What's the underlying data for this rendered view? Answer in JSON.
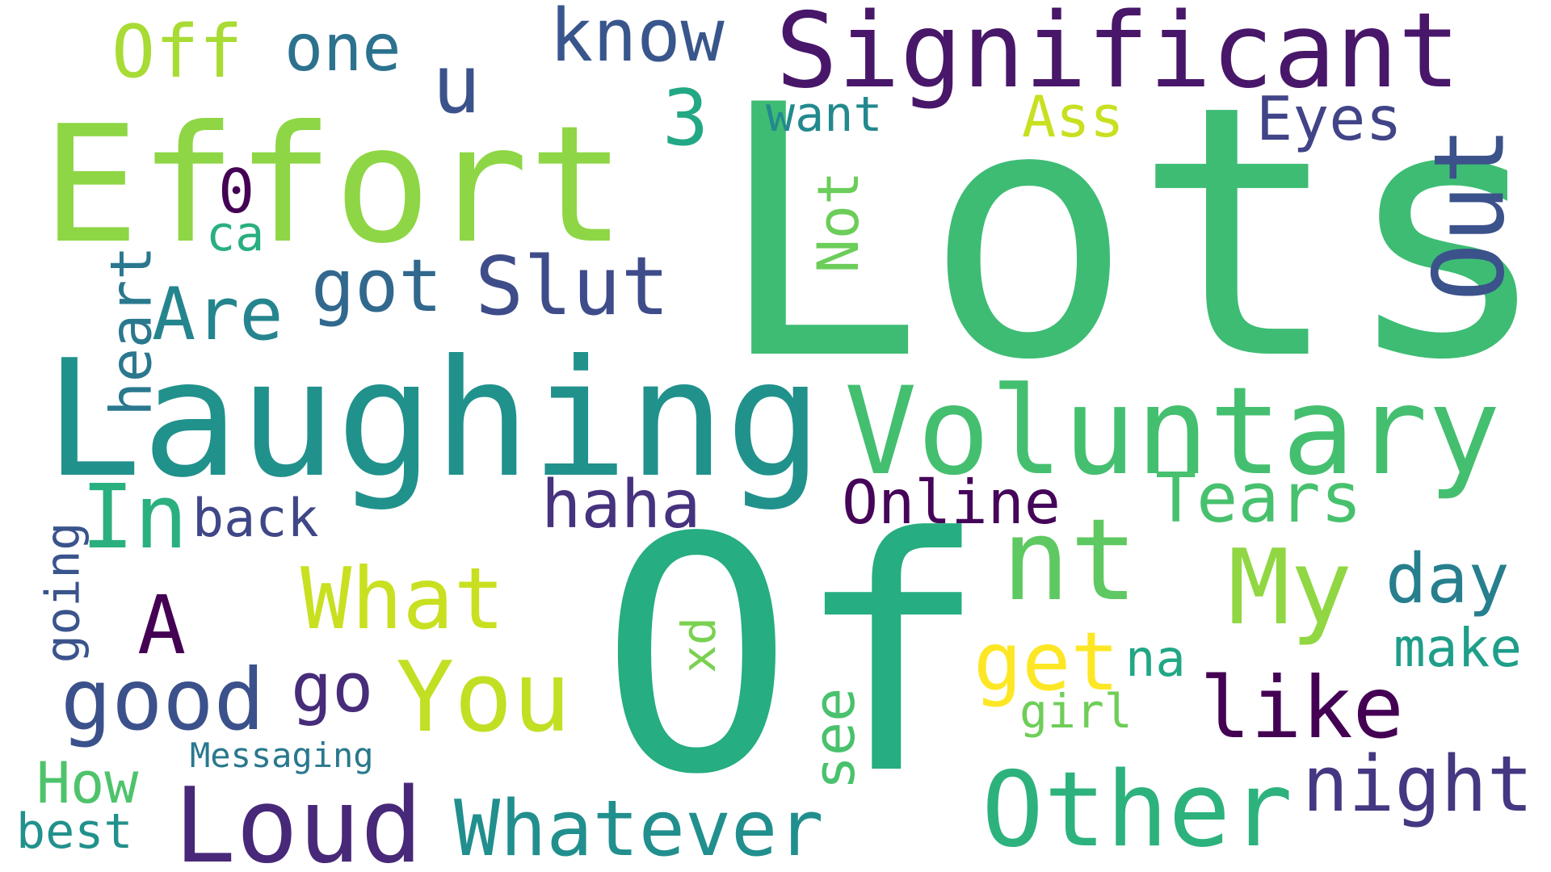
{
  "words": {
    "lots": {
      "text": "Lots",
      "color": "#3ebc74"
    },
    "of": {
      "text": "Of",
      "color": "#26ad81"
    },
    "laughing": {
      "text": "Laughing",
      "color": "#21918c"
    },
    "effort": {
      "text": "Effort",
      "color": "#8ed645"
    },
    "significant": {
      "text": "Significant",
      "color": "#481769"
    },
    "voluntary": {
      "text": "Voluntary",
      "color": "#44bf70"
    },
    "out": {
      "text": "Out",
      "color": "#3b528b"
    },
    "nt": {
      "text": "nt",
      "color": "#5ec962"
    },
    "my": {
      "text": "My",
      "color": "#90d743"
    },
    "loud": {
      "text": "Loud",
      "color": "#482878"
    },
    "other": {
      "text": "Other",
      "color": "#2db27d"
    },
    "whatever": {
      "text": "Whatever",
      "color": "#218f8d"
    },
    "you": {
      "text": "You",
      "color": "#c2df23"
    },
    "what": {
      "text": "What",
      "color": "#c8e020"
    },
    "good": {
      "text": "good",
      "color": "#3b518b"
    },
    "like": {
      "text": "like",
      "color": "#440154"
    },
    "in": {
      "text": "In",
      "color": "#2ab07f"
    },
    "slut": {
      "text": "Slut",
      "color": "#3e4c8a"
    },
    "haha": {
      "text": "haha",
      "color": "#46327e"
    },
    "online": {
      "text": "Online",
      "color": "#450559"
    },
    "tears": {
      "text": "Tears",
      "color": "#48c16e"
    },
    "night": {
      "text": "night",
      "color": "#453781"
    },
    "got": {
      "text": "got",
      "color": "#31688e"
    },
    "are": {
      "text": "Are",
      "color": "#25858e"
    },
    "a": {
      "text": "A",
      "color": "#440154"
    },
    "go": {
      "text": "go",
      "color": "#472c7a"
    },
    "get": {
      "text": "get",
      "color": "#fde725"
    },
    "day": {
      "text": "day",
      "color": "#277f8e"
    },
    "u": {
      "text": "u",
      "color": "#3b528b"
    },
    "know": {
      "text": "know",
      "color": "#39568c"
    },
    "one": {
      "text": "one",
      "color": "#2c728e"
    },
    "off": {
      "text": "Off",
      "color": "#a8db34"
    },
    "three": {
      "text": "3",
      "color": "#22a884"
    },
    "eyes": {
      "text": "Eyes",
      "color": "#414487"
    },
    "ass": {
      "text": "Ass",
      "color": "#c8e020"
    },
    "want": {
      "text": "want",
      "color": "#23898e"
    },
    "zero": {
      "text": "0",
      "color": "#440154"
    },
    "ca": {
      "text": "ca",
      "color": "#29af7f"
    },
    "not": {
      "text": "Not",
      "color": "#6ccd5a"
    },
    "heart": {
      "text": "heart",
      "color": "#2a788e"
    },
    "back": {
      "text": "back",
      "color": "#3f4788"
    },
    "going": {
      "text": "going",
      "color": "#3a548c"
    },
    "how": {
      "text": "How",
      "color": "#4ec36b"
    },
    "best": {
      "text": "best",
      "color": "#21918c"
    },
    "messaging": {
      "text": "Messaging",
      "color": "#2a788e"
    },
    "see": {
      "text": "see",
      "color": "#4ac16d"
    },
    "xd": {
      "text": "xd",
      "color": "#7ad151"
    },
    "na": {
      "text": "na",
      "color": "#22a785"
    },
    "girl": {
      "text": "girl",
      "color": "#6ece58"
    },
    "make": {
      "text": "make",
      "color": "#1f9e89"
    }
  }
}
